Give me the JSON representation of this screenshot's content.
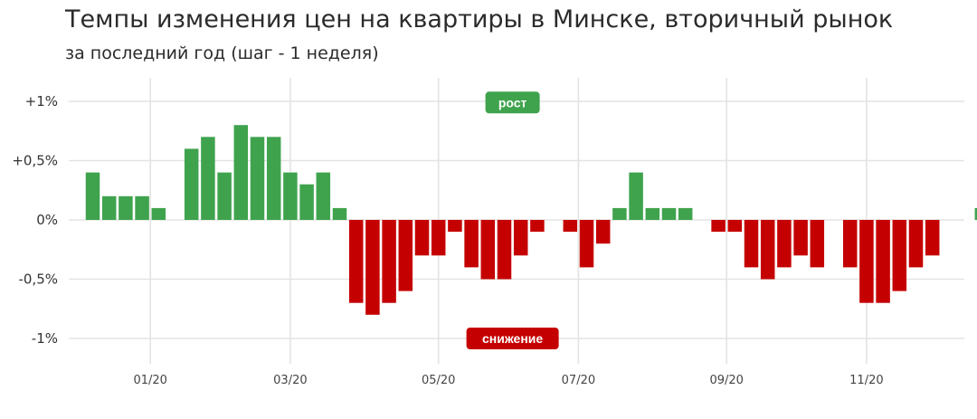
{
  "chart_data": {
    "type": "bar",
    "title": "Темпы изменения цен на квартиры в Минске, вторичный рынок",
    "subtitle": "за последний год (шаг - 1 неделя)",
    "ylim": [
      -1.15,
      1.2
    ],
    "y_ticks": [
      {
        "value": 1,
        "label": "+1%"
      },
      {
        "value": 0.5,
        "label": "+0,5%"
      },
      {
        "value": 0,
        "label": "0%"
      },
      {
        "value": -0.5,
        "label": "-0,5%"
      },
      {
        "value": -1,
        "label": "-1%"
      }
    ],
    "x_ticks": [
      {
        "week": 3.5,
        "label": "01/20"
      },
      {
        "week": 12,
        "label": "03/20"
      },
      {
        "week": 21,
        "label": "05/20"
      },
      {
        "week": 29.5,
        "label": "07/20"
      },
      {
        "week": 38.5,
        "label": "09/20"
      },
      {
        "week": 47,
        "label": "11/20"
      }
    ],
    "grid": true,
    "colors": {
      "up": "#3fa34d",
      "down": "#c50000",
      "grid": "#e3e3e3"
    },
    "annotations": {
      "up": {
        "label": "рост",
        "week": 25.5,
        "value": 0.99
      },
      "down": {
        "label": "снижение",
        "week": 25.5,
        "value": -1.0
      }
    },
    "weeks": [
      0,
      1,
      2,
      3,
      4,
      5,
      6,
      7,
      8,
      9,
      10,
      11,
      12,
      13,
      14,
      15,
      16,
      17,
      18,
      19,
      20,
      21,
      22,
      23,
      24,
      25,
      26,
      27,
      28,
      29,
      30,
      31,
      32,
      33,
      34,
      35,
      36,
      37,
      38,
      39,
      40,
      41,
      42,
      43,
      44,
      45,
      46,
      47,
      48,
      49,
      50,
      51,
      52,
      53,
      54
    ],
    "values": [
      0.4,
      0.2,
      0.2,
      0.2,
      0.1,
      0,
      0.6,
      0.7,
      0.4,
      0.8,
      0.7,
      0.7,
      0.4,
      0.3,
      0.4,
      0.1,
      -0.7,
      -0.8,
      -0.7,
      -0.6,
      -0.3,
      -0.3,
      -0.1,
      -0.4,
      -0.5,
      -0.5,
      -0.3,
      -0.1,
      0,
      -0.1,
      -0.4,
      -0.2,
      0.1,
      0.4,
      0.1,
      0.1,
      0.1,
      0,
      -0.1,
      -0.1,
      -0.4,
      -0.5,
      -0.4,
      -0.3,
      -0.4,
      0,
      -0.4,
      -0.7,
      -0.7,
      -0.6,
      -0.4,
      -0.3,
      0,
      0,
      0.1
    ]
  }
}
